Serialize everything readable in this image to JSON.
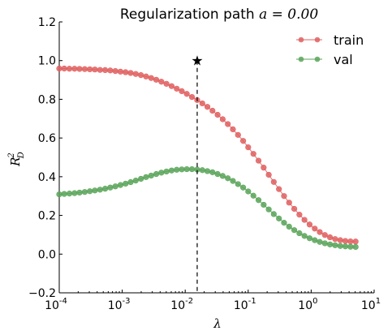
{
  "chart_data": {
    "type": "line",
    "title": "Regularization path ",
    "title_math": "a = 0.00",
    "xlabel": "λ",
    "ylabel_base": "R",
    "ylabel_sup": "2",
    "ylabel_sub": "D",
    "xscale": "log",
    "xlim": [
      0.0001,
      10
    ],
    "ylim": [
      -0.2,
      1.2
    ],
    "y_ticks": [
      -0.2,
      0.0,
      0.2,
      0.4,
      0.6,
      0.8,
      1.0,
      1.2
    ],
    "y_tick_labels": [
      "−0.2",
      "0.0",
      "0.2",
      "0.4",
      "0.6",
      "0.8",
      "1.0",
      "1.2"
    ],
    "x_ticks": [
      0.0001,
      0.001,
      0.01,
      0.1,
      1,
      10
    ],
    "x_tick_labels": [
      {
        "base": "10",
        "exp": "-4"
      },
      {
        "base": "10",
        "exp": "-3"
      },
      {
        "base": "10",
        "exp": "-2"
      },
      {
        "base": "10",
        "exp": "-1"
      },
      {
        "base": "10",
        "exp": "0"
      },
      {
        "base": "10",
        "exp": "1"
      }
    ],
    "legend_position": "top-right",
    "grid": false,
    "x": [
      0.0001,
      0.00012,
      0.000145,
      0.000175,
      0.00021,
      0.000254,
      0.000306,
      0.000368,
      0.000444,
      0.000536,
      0.000646,
      0.000778,
      0.000938,
      0.00113,
      0.00136,
      0.00164,
      0.00198,
      0.00239,
      0.00288,
      0.00347,
      0.00418,
      0.00504,
      0.00608,
      0.00733,
      0.00883,
      0.0106,
      0.0128,
      0.0155,
      0.0187,
      0.0225,
      0.0271,
      0.0327,
      0.0394,
      0.0475,
      0.0572,
      0.069,
      0.0832,
      0.1,
      0.121,
      0.146,
      0.176,
      0.212,
      0.255,
      0.308,
      0.371,
      0.447,
      0.539,
      0.65,
      0.783,
      0.944,
      1.14,
      1.37,
      1.65,
      1.99,
      2.4,
      2.9,
      3.49,
      4.21,
      5.08
    ],
    "series": [
      {
        "name": "train",
        "color": "#e06060",
        "values": [
          0.959,
          0.959,
          0.958,
          0.958,
          0.957,
          0.956,
          0.955,
          0.954,
          0.952,
          0.951,
          0.949,
          0.946,
          0.943,
          0.94,
          0.936,
          0.931,
          0.925,
          0.918,
          0.91,
          0.901,
          0.891,
          0.88,
          0.868,
          0.855,
          0.842,
          0.828,
          0.812,
          0.796,
          0.779,
          0.761,
          0.741,
          0.72,
          0.697,
          0.672,
          0.645,
          0.616,
          0.585,
          0.552,
          0.518,
          0.483,
          0.447,
          0.41,
          0.373,
          0.336,
          0.3,
          0.266,
          0.234,
          0.204,
          0.177,
          0.153,
          0.132,
          0.114,
          0.099,
          0.087,
          0.078,
          0.072,
          0.068,
          0.066,
          0.065
        ]
      },
      {
        "name": "val",
        "color": "#5aa55a",
        "values": [
          0.309,
          0.311,
          0.313,
          0.315,
          0.318,
          0.321,
          0.325,
          0.329,
          0.333,
          0.338,
          0.344,
          0.35,
          0.357,
          0.364,
          0.372,
          0.38,
          0.389,
          0.398,
          0.406,
          0.414,
          0.421,
          0.427,
          0.432,
          0.436,
          0.438,
          0.439,
          0.439,
          0.437,
          0.434,
          0.429,
          0.423,
          0.414,
          0.404,
          0.392,
          0.378,
          0.362,
          0.344,
          0.324,
          0.302,
          0.279,
          0.255,
          0.231,
          0.207,
          0.184,
          0.162,
          0.142,
          0.124,
          0.108,
          0.094,
          0.082,
          0.072,
          0.063,
          0.056,
          0.05,
          0.046,
          0.042,
          0.04,
          0.038,
          0.037
        ]
      }
    ],
    "best_lambda": 0.0155,
    "best_marker_y": 1.0,
    "best_marker_symbol": "★"
  }
}
